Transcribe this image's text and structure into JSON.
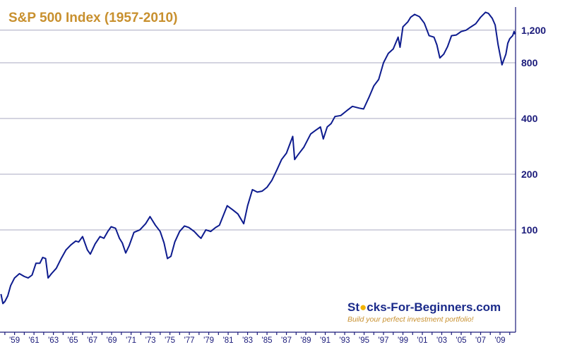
{
  "chart_data": {
    "type": "line",
    "title": "S&P 500 Index (1957-2010)",
    "scale": "log",
    "ylim": [
      28,
      1600
    ],
    "xlim": [
      1957.5,
      2010.6
    ],
    "y_ticks": [
      100,
      200,
      400,
      800,
      1200
    ],
    "y_tick_labels": [
      "100",
      "200",
      "400",
      "800",
      "1,200"
    ],
    "x_tick_labels": [
      "'59",
      "'61",
      "'63",
      "'65",
      "'67",
      "'69",
      "'71",
      "'73",
      "'75",
      "'77",
      "'79",
      "'81",
      "'83",
      "'85",
      "'87",
      "'89",
      "'91",
      "'93",
      "'95",
      "'97",
      "'99",
      "'01",
      "'03",
      "'05",
      "'07",
      "'09"
    ],
    "x_tick_years": [
      1959,
      1961,
      1963,
      1965,
      1967,
      1969,
      1971,
      1973,
      1975,
      1977,
      1979,
      1981,
      1983,
      1985,
      1987,
      1989,
      1991,
      1993,
      1995,
      1997,
      1999,
      2001,
      2003,
      2005,
      2007,
      2009
    ],
    "grid": true,
    "axis_side": "right",
    "series": [
      {
        "color": "#0d1b8e",
        "x": [
          1957.6,
          1957.8,
          1958.0,
          1958.3,
          1958.6,
          1959.0,
          1959.5,
          1960.0,
          1960.4,
          1960.8,
          1961.2,
          1961.6,
          1961.9,
          1962.2,
          1962.45,
          1962.8,
          1963.3,
          1963.8,
          1964.3,
          1964.8,
          1965.3,
          1965.6,
          1966.0,
          1966.5,
          1966.8,
          1967.3,
          1967.8,
          1968.2,
          1968.6,
          1968.95,
          1969.4,
          1969.8,
          1970.1,
          1970.45,
          1970.8,
          1971.3,
          1971.9,
          1972.5,
          1972.95,
          1973.5,
          1974.0,
          1974.4,
          1974.75,
          1975.1,
          1975.5,
          1976.0,
          1976.5,
          1976.95,
          1977.5,
          1978.0,
          1978.2,
          1978.7,
          1979.2,
          1979.7,
          1980.1,
          1980.9,
          1981.5,
          1982.0,
          1982.6,
          1983.0,
          1983.5,
          1984.0,
          1984.5,
          1985.0,
          1985.5,
          1986.0,
          1986.5,
          1987.0,
          1987.65,
          1987.85,
          1988.2,
          1988.8,
          1989.5,
          1990.0,
          1990.5,
          1990.8,
          1991.2,
          1991.6,
          1992.0,
          1992.6,
          1993.2,
          1993.8,
          1994.5,
          1994.95,
          1995.5,
          1996.0,
          1996.5,
          1997.0,
          1997.5,
          1998.0,
          1998.5,
          1998.7,
          1999.0,
          1999.5,
          1999.8,
          2000.2,
          2000.7,
          2001.2,
          2001.7,
          2002.2,
          2002.5,
          2002.8,
          2003.2,
          2003.6,
          2004.0,
          2004.5,
          2005.0,
          2005.5,
          2006.0,
          2006.5,
          2007.0,
          2007.5,
          2007.8,
          2008.2,
          2008.5,
          2008.8,
          2009.2,
          2009.6,
          2009.8,
          2010.0,
          2010.3,
          2010.45,
          2010.55
        ],
        "y": [
          45,
          40,
          41,
          44,
          50,
          55,
          58,
          56,
          55,
          57,
          66,
          66,
          71,
          70,
          55,
          58,
          62,
          70,
          78,
          83,
          87,
          86,
          92,
          78,
          74,
          84,
          92,
          90,
          98,
          104,
          102,
          90,
          85,
          75,
          82,
          97,
          100,
          108,
          118,
          106,
          98,
          85,
          70,
          72,
          86,
          98,
          105,
          103,
          98,
          92,
          90,
          100,
          98,
          103,
          106,
          135,
          128,
          122,
          108,
          135,
          165,
          160,
          162,
          170,
          185,
          210,
          240,
          260,
          320,
          240,
          255,
          280,
          330,
          345,
          360,
          310,
          360,
          375,
          410,
          415,
          440,
          465,
          455,
          450,
          520,
          600,
          650,
          800,
          900,
          950,
          1100,
          970,
          1250,
          1330,
          1410,
          1460,
          1420,
          1310,
          1120,
          1100,
          1000,
          850,
          890,
          980,
          1120,
          1130,
          1180,
          1200,
          1250,
          1300,
          1410,
          1500,
          1480,
          1390,
          1280,
          1000,
          780,
          890,
          1020,
          1080,
          1120,
          1180,
          1140
        ]
      }
    ]
  },
  "branding": {
    "name_pre": "St",
    "name_post": "cks-For-Beginners.com",
    "tagline": "Build your perfect investment portfolio!"
  }
}
